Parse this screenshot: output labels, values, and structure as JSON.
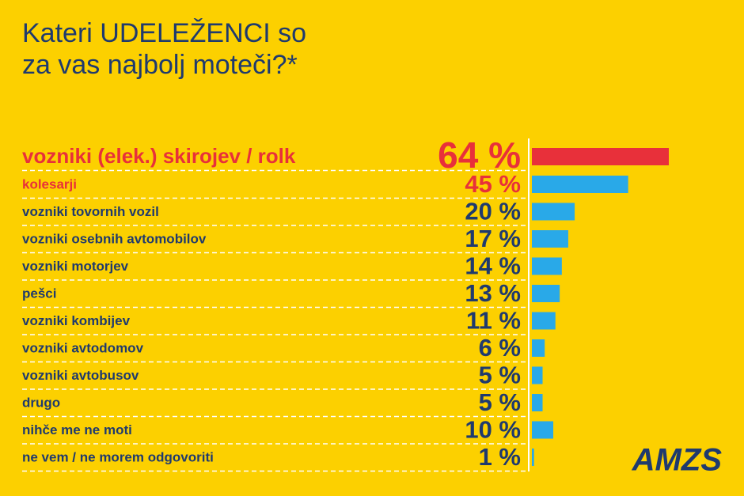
{
  "chart_data": {
    "type": "bar",
    "orientation": "horizontal",
    "title": "Kateri UDELEŽENCI so za vas najbolj moteči?*",
    "categories": [
      "vozniki (elek.) skirojev / rolk",
      "kolesarji",
      "vozniki tovornih vozil",
      "vozniki osebnih avtomobilov",
      "vozniki motorjev",
      "pešci",
      "vozniki kombijev",
      "vozniki avtodomov",
      "vozniki avtobusov",
      "drugo",
      "nihče me ne moti",
      "ne vem / ne morem odgovoriti"
    ],
    "values": [
      64,
      45,
      20,
      17,
      14,
      13,
      11,
      6,
      5,
      5,
      10,
      1
    ],
    "value_labels": [
      "64 %",
      "45 %",
      "20 %",
      "17 %",
      "14 %",
      "13 %",
      "11 %",
      "6 %",
      "5 %",
      "5 %",
      "10 %",
      "1 %"
    ],
    "colors": [
      "#e8303a",
      "#29a9e8",
      "#29a9e8",
      "#29a9e8",
      "#29a9e8",
      "#29a9e8",
      "#29a9e8",
      "#29a9e8",
      "#29a9e8",
      "#29a9e8",
      "#29a9e8",
      "#29a9e8"
    ],
    "label_colors": [
      "#e8303a",
      "#e8303a",
      "#1f3a6e",
      "#1f3a6e",
      "#1f3a6e",
      "#1f3a6e",
      "#1f3a6e",
      "#1f3a6e",
      "#1f3a6e",
      "#1f3a6e",
      "#1f3a6e",
      "#1f3a6e"
    ],
    "logo": "AMZS"
  }
}
